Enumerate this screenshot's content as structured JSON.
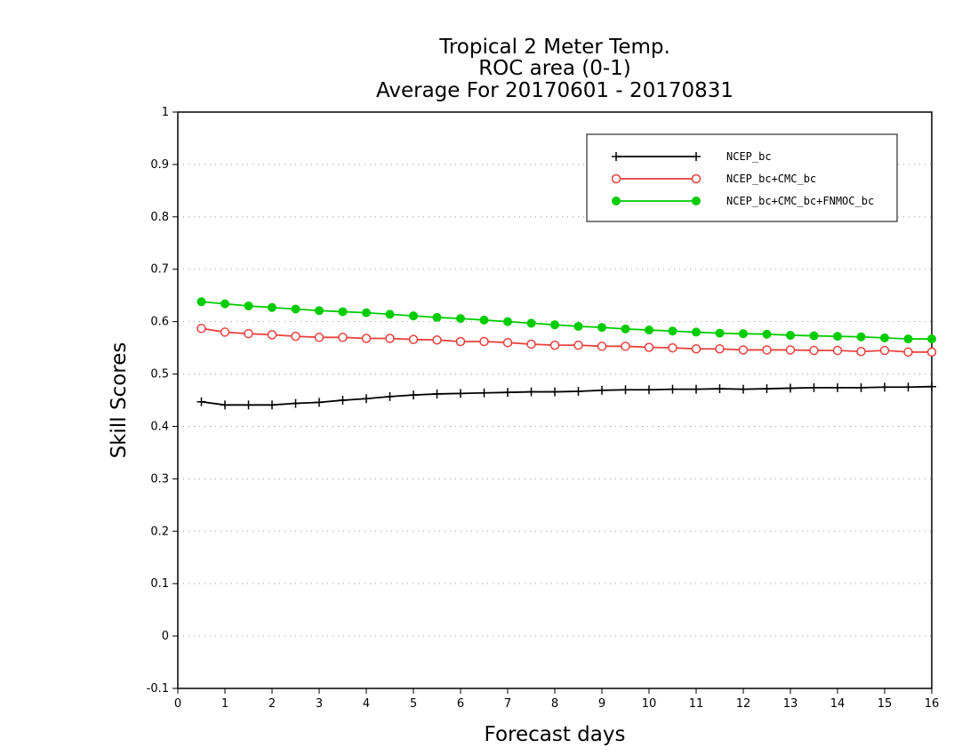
{
  "chart_data": {
    "type": "line",
    "title": [
      "Tropical 2 Meter Temp.",
      "ROC area (0-1)",
      "Average For 20170601 - 20170831"
    ],
    "xlabel": "Forecast days",
    "ylabel": "Skill Scores",
    "xlim": [
      0,
      16
    ],
    "ylim": [
      -0.1,
      1
    ],
    "xticks": [
      "0",
      "1",
      "2",
      "3",
      "4",
      "5",
      "6",
      "7",
      "8",
      "9",
      "10",
      "11",
      "12",
      "13",
      "14",
      "15",
      "16"
    ],
    "yticks": [
      "-0.1",
      "0",
      "0.1",
      "0.2",
      "0.3",
      "0.4",
      "0.5",
      "0.6",
      "0.7",
      "0.8",
      "0.9",
      "1"
    ],
    "grid": "horizontal dotted",
    "legend_position": "top-right",
    "x": [
      0.5,
      1,
      1.5,
      2,
      2.5,
      3,
      3.5,
      4,
      4.5,
      5,
      5.5,
      6,
      6.5,
      7,
      7.5,
      8,
      8.5,
      9,
      9.5,
      10,
      10.5,
      11,
      11.5,
      12,
      12.5,
      13,
      13.5,
      14,
      14.5,
      15,
      15.5,
      16
    ],
    "series": [
      {
        "name": "NCEP_bc",
        "color": "#000000",
        "marker": "plus",
        "values": [
          0.447,
          0.441,
          0.441,
          0.441,
          0.444,
          0.446,
          0.45,
          0.453,
          0.457,
          0.46,
          0.462,
          0.463,
          0.464,
          0.465,
          0.466,
          0.466,
          0.467,
          0.469,
          0.47,
          0.47,
          0.471,
          0.471,
          0.472,
          0.471,
          0.472,
          0.473,
          0.474,
          0.474,
          0.474,
          0.475,
          0.475,
          0.476
        ]
      },
      {
        "name": "NCEP_bc+CMC_bc",
        "color": "#e8413c",
        "marker": "open-circle",
        "values": [
          0.587,
          0.58,
          0.577,
          0.575,
          0.572,
          0.57,
          0.57,
          0.568,
          0.568,
          0.566,
          0.565,
          0.562,
          0.562,
          0.56,
          0.557,
          0.555,
          0.555,
          0.553,
          0.553,
          0.551,
          0.55,
          0.548,
          0.548,
          0.546,
          0.546,
          0.546,
          0.545,
          0.545,
          0.543,
          0.545,
          0.542,
          0.542
        ]
      },
      {
        "name": "NCEP_bc+CMC_bc+FNMOC_bc",
        "color": "#00cc00",
        "marker": "filled-circle",
        "values": [
          0.638,
          0.634,
          0.63,
          0.627,
          0.624,
          0.621,
          0.619,
          0.617,
          0.614,
          0.611,
          0.608,
          0.606,
          0.603,
          0.6,
          0.597,
          0.594,
          0.591,
          0.589,
          0.586,
          0.584,
          0.582,
          0.58,
          0.578,
          0.577,
          0.576,
          0.574,
          0.573,
          0.572,
          0.571,
          0.569,
          0.567,
          0.567
        ]
      }
    ]
  }
}
